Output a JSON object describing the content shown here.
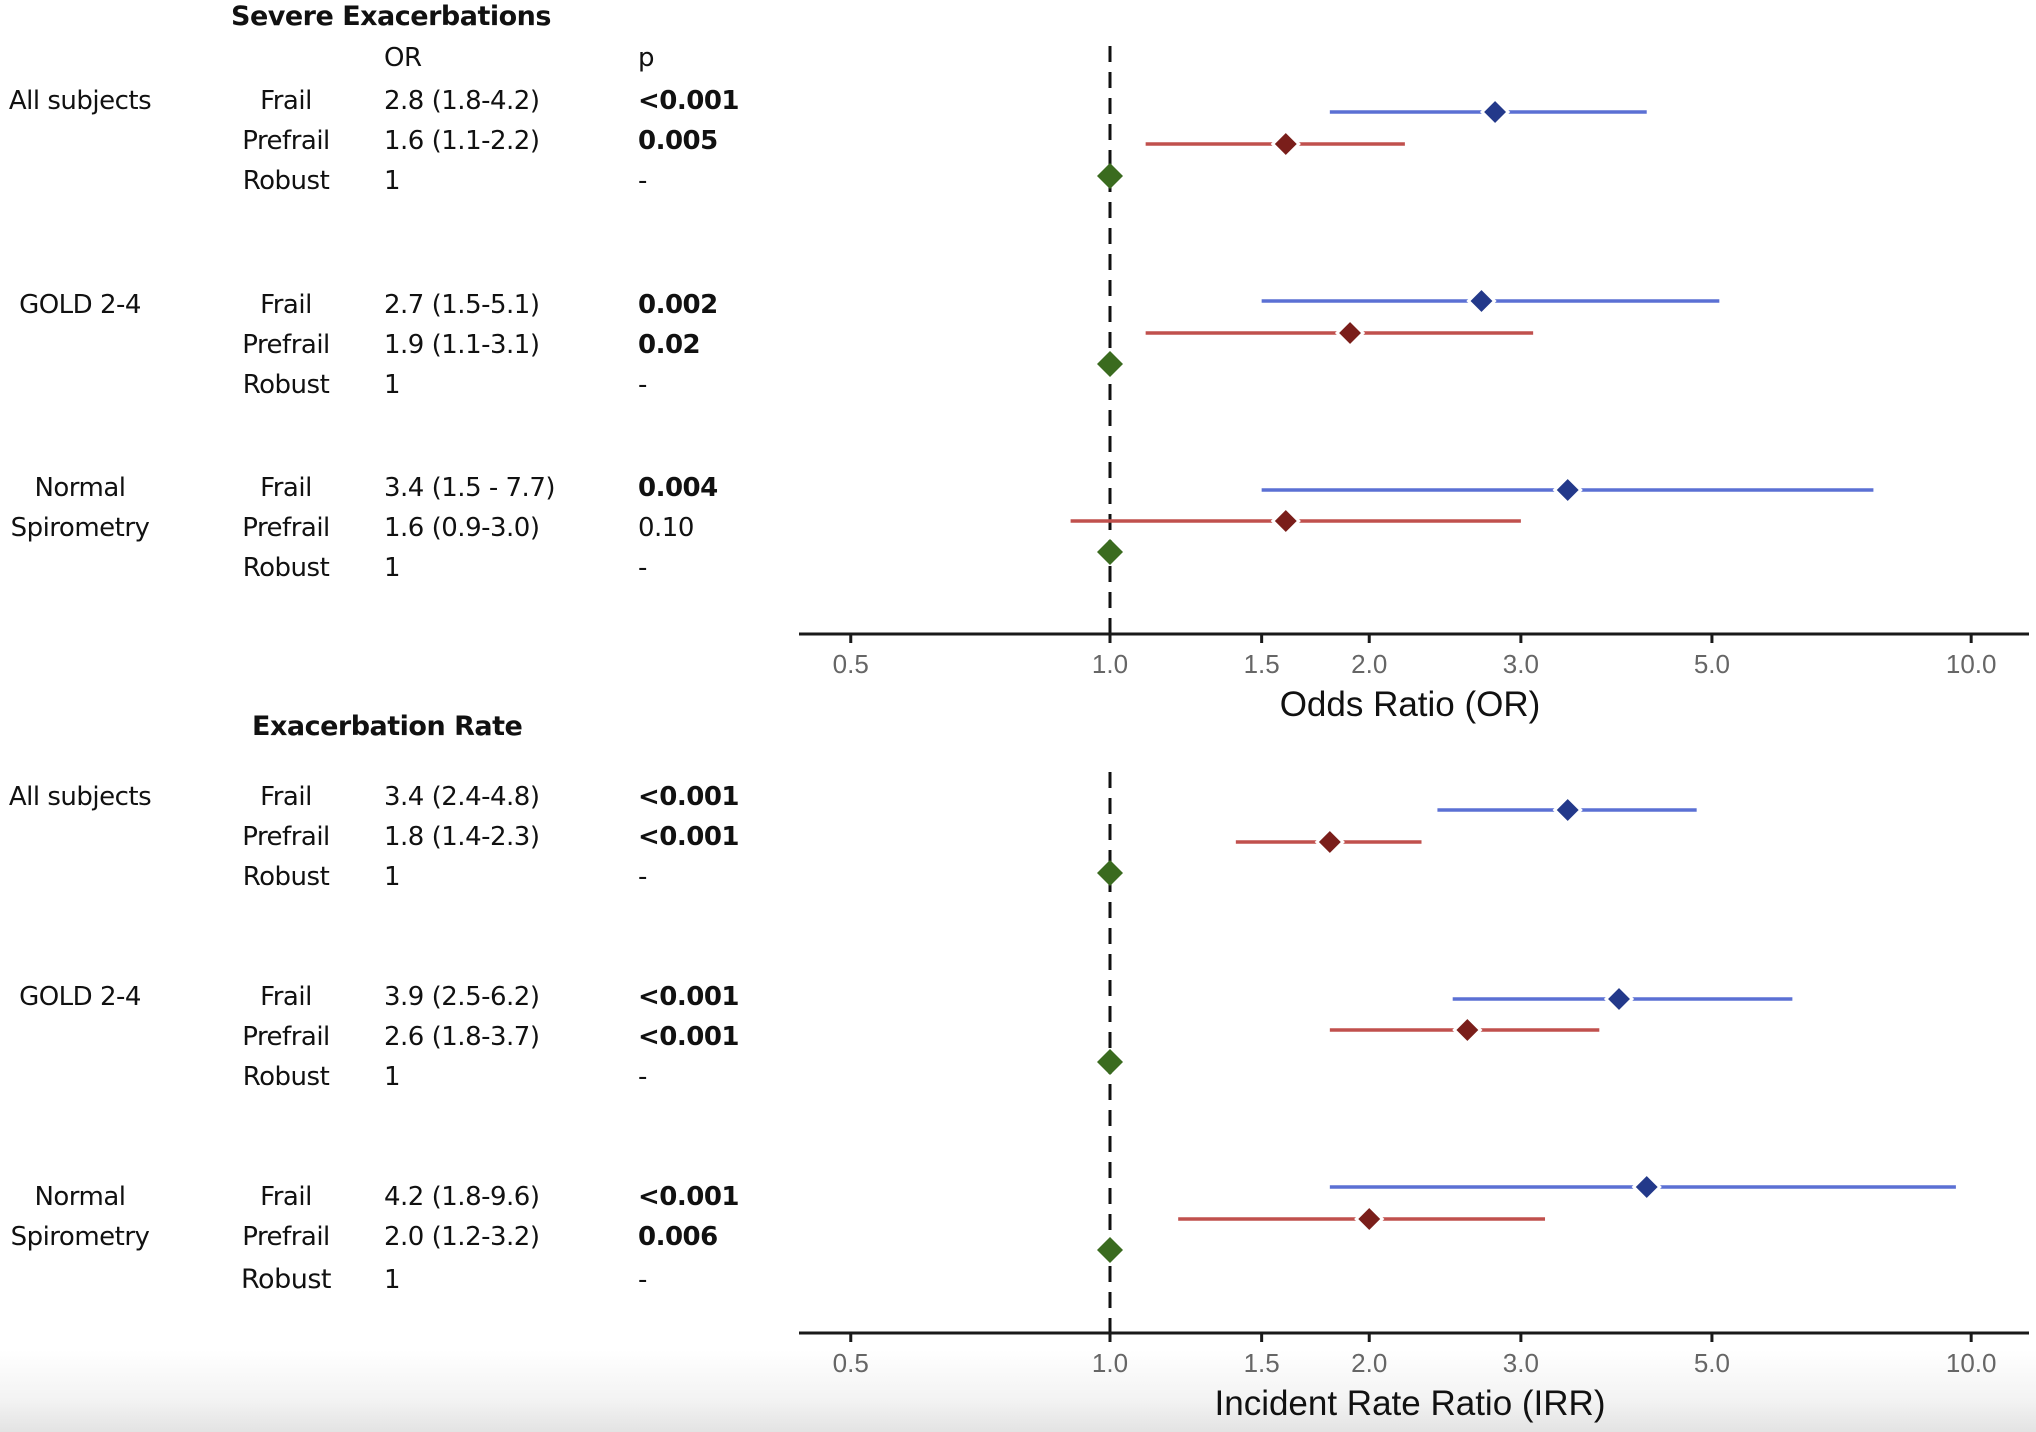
{
  "colors": {
    "frail_ci": "#5b70d4",
    "frail_point": "#23398a",
    "prefrail_ci": "#c0504d",
    "prefrail_point": "#7a1e1a",
    "robust_point": "#3a6b1f",
    "reference_line": "#111111",
    "axis": "#1a1a1a"
  },
  "panels": [
    {
      "title": "Severe Exacerbations",
      "est_header": "OR",
      "p_header": "p",
      "groups": [
        {
          "label": "All subjects",
          "rows": [
            {
              "category": "Frail",
              "estimate_text": "2.8 (1.8-4.2)",
              "p": "<0.001",
              "p_bold": true
            },
            {
              "category": "Prefrail",
              "estimate_text": "1.6 (1.1-2.2)",
              "p": "0.005",
              "p_bold": true
            },
            {
              "category": "Robust",
              "estimate_text": "1",
              "p": "-",
              "p_bold": false
            }
          ]
        },
        {
          "label": "GOLD 2-4",
          "rows": [
            {
              "category": "Frail",
              "estimate_text": "2.7 (1.5-5.1)",
              "p": "0.002",
              "p_bold": true
            },
            {
              "category": "Prefrail",
              "estimate_text": "1.9 (1.1-3.1)",
              "p": "0.02",
              "p_bold": true
            },
            {
              "category": "Robust",
              "estimate_text": "1",
              "p": "-",
              "p_bold": false
            }
          ]
        },
        {
          "label_lines": [
            "Normal",
            "Spirometry"
          ],
          "rows": [
            {
              "category": "Frail",
              "estimate_text": "3.4 (1.5 - 7.7)",
              "p": "0.004",
              "p_bold": true
            },
            {
              "category": "Prefrail",
              "estimate_text": "1.6 (0.9-3.0)",
              "p": "0.10",
              "p_bold": false
            },
            {
              "category": "Robust",
              "estimate_text": "1",
              "p": "-",
              "p_bold": false
            }
          ]
        }
      ]
    },
    {
      "title": "Exacerbation Rate",
      "groups": [
        {
          "label": "All subjects",
          "rows": [
            {
              "category": "Frail",
              "estimate_text": "3.4 (2.4-4.8)",
              "p": "<0.001",
              "p_bold": true
            },
            {
              "category": "Prefrail",
              "estimate_text": "1.8 (1.4-2.3)",
              "p": "<0.001",
              "p_bold": true
            },
            {
              "category": "Robust",
              "estimate_text": "1",
              "p": "-",
              "p_bold": false
            }
          ]
        },
        {
          "label": "GOLD 2-4",
          "rows": [
            {
              "category": "Frail",
              "estimate_text": "3.9 (2.5-6.2)",
              "p": "<0.001",
              "p_bold": true
            },
            {
              "category": "Prefrail",
              "estimate_text": "2.6 (1.8-3.7)",
              "p": "<0.001",
              "p_bold": true
            },
            {
              "category": "Robust",
              "estimate_text": "1",
              "p": "-",
              "p_bold": false
            }
          ]
        },
        {
          "label_lines": [
            "Normal",
            "Spirometry"
          ],
          "rows": [
            {
              "category": "Frail",
              "estimate_text": "4.2 (1.8-9.6)",
              "p": "<0.001",
              "p_bold": true
            },
            {
              "category": "Prefrail",
              "estimate_text": "2.0 (1.2-3.2)",
              "p": "0.006",
              "p_bold": true
            },
            {
              "category": "Robust",
              "estimate_text": "1",
              "p": "-",
              "p_bold": false
            }
          ]
        }
      ]
    }
  ],
  "chart_data": [
    {
      "type": "scatter",
      "subtype": "forest",
      "title": "Severe Exacerbations",
      "xlabel": "Odds Ratio (OR)",
      "ylabel": "",
      "xscale": "log",
      "xlim": [
        0.45,
        11.5
      ],
      "xticks": [
        0.5,
        1.0,
        1.5,
        2.0,
        3.0,
        5.0,
        10.0
      ],
      "xtick_labels": [
        "0.5",
        "1.0",
        "1.5",
        "2.0",
        "3.0",
        "5.0",
        "10.0"
      ],
      "reference_line": 1.0,
      "grid": false,
      "legend": "none",
      "series": [
        {
          "name": "Frail",
          "groups": [
            "All subjects",
            "GOLD 2-4",
            "Normal Spirometry"
          ],
          "estimate": [
            2.8,
            2.7,
            3.4
          ],
          "lower": [
            1.8,
            1.5,
            1.5
          ],
          "upper": [
            4.2,
            5.1,
            7.7
          ]
        },
        {
          "name": "Prefrail",
          "groups": [
            "All subjects",
            "GOLD 2-4",
            "Normal Spirometry"
          ],
          "estimate": [
            1.6,
            1.9,
            1.6
          ],
          "lower": [
            1.1,
            1.1,
            0.9
          ],
          "upper": [
            2.2,
            3.1,
            3.0
          ]
        },
        {
          "name": "Robust",
          "groups": [
            "All subjects",
            "GOLD 2-4",
            "Normal Spirometry"
          ],
          "estimate": [
            1.0,
            1.0,
            1.0
          ],
          "lower": [
            null,
            null,
            null
          ],
          "upper": [
            null,
            null,
            null
          ]
        }
      ]
    },
    {
      "type": "scatter",
      "subtype": "forest",
      "title": "Exacerbation Rate",
      "xlabel": "Incident Rate Ratio (IRR)",
      "ylabel": "",
      "xscale": "log",
      "xlim": [
        0.45,
        11.5
      ],
      "xticks": [
        0.5,
        1.0,
        1.5,
        2.0,
        3.0,
        5.0,
        10.0
      ],
      "xtick_labels": [
        "0.5",
        "1.0",
        "1.5",
        "2.0",
        "3.0",
        "5.0",
        "10.0"
      ],
      "reference_line": 1.0,
      "grid": false,
      "legend": "none",
      "series": [
        {
          "name": "Frail",
          "groups": [
            "All subjects",
            "GOLD 2-4",
            "Normal Spirometry"
          ],
          "estimate": [
            3.4,
            3.9,
            4.2
          ],
          "lower": [
            2.4,
            2.5,
            1.8
          ],
          "upper": [
            4.8,
            6.2,
            9.6
          ]
        },
        {
          "name": "Prefrail",
          "groups": [
            "All subjects",
            "GOLD 2-4",
            "Normal Spirometry"
          ],
          "estimate": [
            1.8,
            2.6,
            2.0
          ],
          "lower": [
            1.4,
            1.8,
            1.2
          ],
          "upper": [
            2.3,
            3.7,
            3.2
          ]
        },
        {
          "name": "Robust",
          "groups": [
            "All subjects",
            "GOLD 2-4",
            "Normal Spirometry"
          ],
          "estimate": [
            1.0,
            1.0,
            1.0
          ],
          "lower": [
            null,
            null,
            null
          ],
          "upper": [
            null,
            null,
            null
          ]
        }
      ]
    }
  ]
}
